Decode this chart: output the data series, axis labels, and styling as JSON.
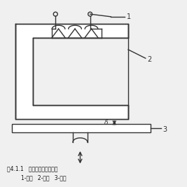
{
  "title_line1": "图4.1.1   变气隙型电感传感器",
  "title_line2": "1-线圈   2-铁芯   3-衔铁",
  "bg_color": "#f0f0f0",
  "line_color": "#333333",
  "label1": "1",
  "label2": "2",
  "label3": "3",
  "delta_label": "δ"
}
